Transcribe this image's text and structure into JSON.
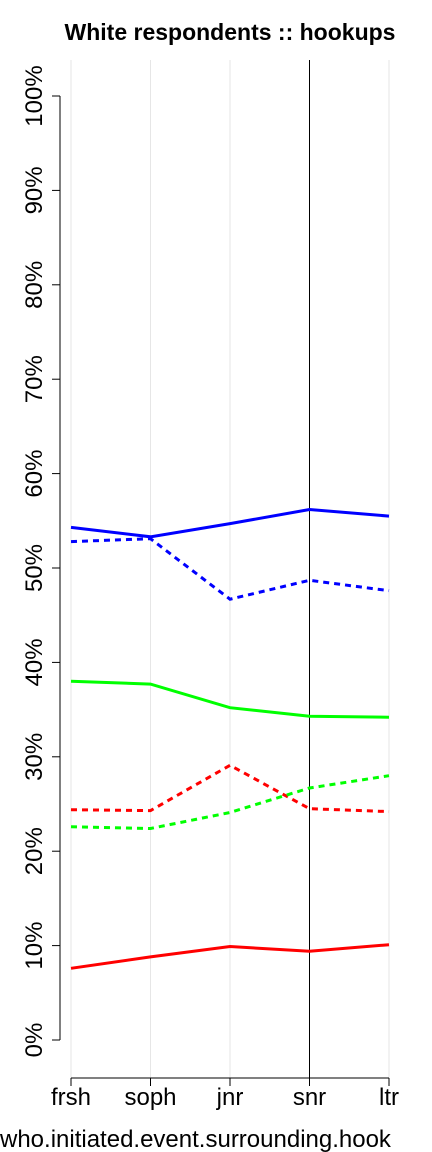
{
  "chart_data": {
    "type": "line",
    "title": "White respondents :: hookups",
    "xlabel": "who.initiated.event.surrounding.hook",
    "ylabel": "",
    "categories": [
      "frsh",
      "soph",
      "jnr",
      "snr",
      "ltr"
    ],
    "ylim": [
      0,
      100
    ],
    "yticks": [
      "0%",
      "10%",
      "20%",
      "30%",
      "40%",
      "50%",
      "60%",
      "70%",
      "80%",
      "90%",
      "100%"
    ],
    "vertical_reference_category": "snr",
    "grid": "vertical",
    "legend": "none",
    "series": [
      {
        "color": "#0000ff",
        "style": "solid",
        "values": [
          54.3,
          53.3,
          54.7,
          56.2,
          55.5
        ]
      },
      {
        "color": "#0000ff",
        "style": "dashed",
        "values": [
          52.8,
          53.1,
          46.7,
          48.7,
          47.6
        ]
      },
      {
        "color": "#00ff00",
        "style": "solid",
        "values": [
          38.0,
          37.7,
          35.2,
          34.3,
          34.2
        ]
      },
      {
        "color": "#ff0000",
        "style": "dashed",
        "values": [
          24.4,
          24.3,
          29.1,
          24.5,
          24.2
        ]
      },
      {
        "color": "#00ff00",
        "style": "dashed",
        "values": [
          22.6,
          22.4,
          24.1,
          26.7,
          28.0
        ]
      },
      {
        "color": "#ff0000",
        "style": "solid",
        "values": [
          7.6,
          8.8,
          9.9,
          9.4,
          10.1
        ]
      }
    ]
  }
}
